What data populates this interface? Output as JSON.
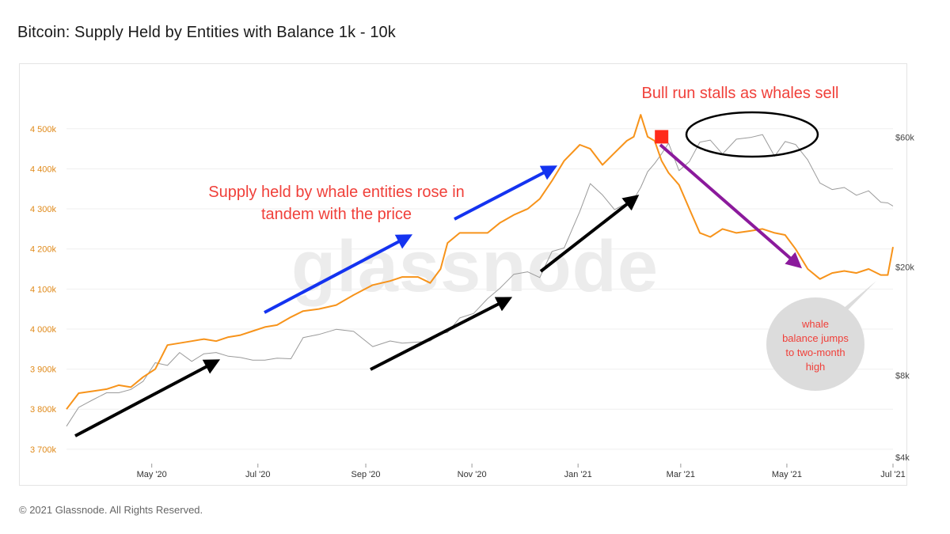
{
  "title": "Bitcoin: Supply Held by Entities with Balance 1k - 10k",
  "footer": "© 2021 Glassnode. All Rights Reserved.",
  "watermark": "glassnode",
  "colors": {
    "supply_series": "#f7931a",
    "price_series": "#9a9a9a",
    "blue_arrow": "#1433f0",
    "black_arrow": "#000000",
    "purple_arrow": "#8b1a9c",
    "annotation_red": "#f0403a",
    "marker_red": "#ff2a1a"
  },
  "chart_data": {
    "type": "line",
    "x_range": [
      "2020-03-13",
      "2021-07-01"
    ],
    "x_tick_labels": [
      "May '20",
      "Jul '20",
      "Sep '20",
      "Nov '20",
      "Jan '21",
      "Mar '21",
      "May '21",
      "Jul '21"
    ],
    "x_tick_dates": [
      "2020-05-01",
      "2020-07-01",
      "2020-09-01",
      "2020-11-01",
      "2021-01-01",
      "2021-03-01",
      "2021-05-01",
      "2021-07-01"
    ],
    "y_left": {
      "tick_labels": [
        "3 700k",
        "3 800k",
        "3 900k",
        "4 000k",
        "4 100k",
        "4 200k",
        "4 300k",
        "4 400k",
        "4 500k"
      ],
      "tick_values": [
        3700000,
        3800000,
        3900000,
        4000000,
        4100000,
        4200000,
        4300000,
        4400000,
        4500000
      ],
      "range": [
        3680000,
        4545000
      ]
    },
    "y_right": {
      "scale": "log",
      "tick_labels": [
        "$4k",
        "$8k",
        "$20k",
        "$60k"
      ],
      "tick_values": [
        4000,
        8000,
        20000,
        60000
      ],
      "range": [
        4000,
        75000
      ]
    },
    "series": [
      {
        "axis": "left",
        "points": [
          [
            "2020-03-13",
            3800000
          ],
          [
            "2020-03-20",
            3840000
          ],
          [
            "2020-03-28",
            3845000
          ],
          [
            "2020-04-05",
            3850000
          ],
          [
            "2020-04-12",
            3860000
          ],
          [
            "2020-04-19",
            3855000
          ],
          [
            "2020-04-26",
            3880000
          ],
          [
            "2020-05-03",
            3900000
          ],
          [
            "2020-05-10",
            3960000
          ],
          [
            "2020-05-17",
            3965000
          ],
          [
            "2020-05-24",
            3970000
          ],
          [
            "2020-05-31",
            3975000
          ],
          [
            "2020-06-07",
            3970000
          ],
          [
            "2020-06-14",
            3980000
          ],
          [
            "2020-06-21",
            3985000
          ],
          [
            "2020-06-28",
            3995000
          ],
          [
            "2020-07-05",
            4005000
          ],
          [
            "2020-07-12",
            4010000
          ],
          [
            "2020-07-20",
            4030000
          ],
          [
            "2020-07-27",
            4045000
          ],
          [
            "2020-08-05",
            4050000
          ],
          [
            "2020-08-15",
            4060000
          ],
          [
            "2020-08-25",
            4085000
          ],
          [
            "2020-09-05",
            4110000
          ],
          [
            "2020-09-15",
            4120000
          ],
          [
            "2020-09-22",
            4130000
          ],
          [
            "2020-10-01",
            4130000
          ],
          [
            "2020-10-08",
            4115000
          ],
          [
            "2020-10-14",
            4150000
          ],
          [
            "2020-10-18",
            4215000
          ],
          [
            "2020-10-25",
            4240000
          ],
          [
            "2020-11-02",
            4240000
          ],
          [
            "2020-11-10",
            4240000
          ],
          [
            "2020-11-17",
            4265000
          ],
          [
            "2020-11-25",
            4285000
          ],
          [
            "2020-12-03",
            4300000
          ],
          [
            "2020-12-10",
            4325000
          ],
          [
            "2020-12-17",
            4370000
          ],
          [
            "2020-12-24",
            4420000
          ],
          [
            "2021-01-02",
            4460000
          ],
          [
            "2021-01-08",
            4450000
          ],
          [
            "2021-01-15",
            4410000
          ],
          [
            "2021-01-22",
            4440000
          ],
          [
            "2021-01-29",
            4470000
          ],
          [
            "2021-02-02",
            4480000
          ],
          [
            "2021-02-06",
            4535000
          ],
          [
            "2021-02-10",
            4480000
          ],
          [
            "2021-02-14",
            4470000
          ],
          [
            "2021-02-18",
            4420000
          ],
          [
            "2021-02-22",
            4390000
          ],
          [
            "2021-02-28",
            4360000
          ],
          [
            "2021-03-06",
            4300000
          ],
          [
            "2021-03-12",
            4240000
          ],
          [
            "2021-03-18",
            4230000
          ],
          [
            "2021-03-25",
            4250000
          ],
          [
            "2021-04-02",
            4240000
          ],
          [
            "2021-04-10",
            4245000
          ],
          [
            "2021-04-17",
            4250000
          ],
          [
            "2021-04-24",
            4240000
          ],
          [
            "2021-04-30",
            4235000
          ],
          [
            "2021-05-06",
            4200000
          ],
          [
            "2021-05-13",
            4150000
          ],
          [
            "2021-05-20",
            4125000
          ],
          [
            "2021-05-27",
            4140000
          ],
          [
            "2021-06-03",
            4145000
          ],
          [
            "2021-06-10",
            4140000
          ],
          [
            "2021-06-17",
            4150000
          ],
          [
            "2021-06-24",
            4135000
          ],
          [
            "2021-06-28",
            4135000
          ],
          [
            "2021-07-01",
            4205000
          ]
        ]
      },
      {
        "axis": "right",
        "points": [
          [
            "2020-03-13",
            5200
          ],
          [
            "2020-03-20",
            6100
          ],
          [
            "2020-03-28",
            6500
          ],
          [
            "2020-04-05",
            6900
          ],
          [
            "2020-04-12",
            6900
          ],
          [
            "2020-04-19",
            7100
          ],
          [
            "2020-04-26",
            7600
          ],
          [
            "2020-05-03",
            8900
          ],
          [
            "2020-05-10",
            8700
          ],
          [
            "2020-05-17",
            9700
          ],
          [
            "2020-05-24",
            9000
          ],
          [
            "2020-05-31",
            9600
          ],
          [
            "2020-06-07",
            9700
          ],
          [
            "2020-06-14",
            9400
          ],
          [
            "2020-06-21",
            9300
          ],
          [
            "2020-06-28",
            9100
          ],
          [
            "2020-07-05",
            9100
          ],
          [
            "2020-07-12",
            9250
          ],
          [
            "2020-07-20",
            9200
          ],
          [
            "2020-07-27",
            11000
          ],
          [
            "2020-08-05",
            11300
          ],
          [
            "2020-08-15",
            11800
          ],
          [
            "2020-08-25",
            11600
          ],
          [
            "2020-09-05",
            10200
          ],
          [
            "2020-09-15",
            10700
          ],
          [
            "2020-09-22",
            10500
          ],
          [
            "2020-10-01",
            10600
          ],
          [
            "2020-10-08",
            10700
          ],
          [
            "2020-10-14",
            11400
          ],
          [
            "2020-10-18",
            11500
          ],
          [
            "2020-10-25",
            13000
          ],
          [
            "2020-11-02",
            13500
          ],
          [
            "2020-11-10",
            15300
          ],
          [
            "2020-11-17",
            16700
          ],
          [
            "2020-11-25",
            18800
          ],
          [
            "2020-12-03",
            19200
          ],
          [
            "2020-12-10",
            18300
          ],
          [
            "2020-12-17",
            22800
          ],
          [
            "2020-12-24",
            23500
          ],
          [
            "2021-01-02",
            32000
          ],
          [
            "2021-01-08",
            40500
          ],
          [
            "2021-01-15",
            36800
          ],
          [
            "2021-01-22",
            32500
          ],
          [
            "2021-01-29",
            34300
          ],
          [
            "2021-02-02",
            35500
          ],
          [
            "2021-02-06",
            39200
          ],
          [
            "2021-02-10",
            44800
          ],
          [
            "2021-02-14",
            48000
          ],
          [
            "2021-02-18",
            52100
          ],
          [
            "2021-02-22",
            57000
          ],
          [
            "2021-02-28",
            45200
          ],
          [
            "2021-03-06",
            48800
          ],
          [
            "2021-03-12",
            57500
          ],
          [
            "2021-03-18",
            58500
          ],
          [
            "2021-03-25",
            52000
          ],
          [
            "2021-04-02",
            59000
          ],
          [
            "2021-04-10",
            59800
          ],
          [
            "2021-04-17",
            61300
          ],
          [
            "2021-04-24",
            51000
          ],
          [
            "2021-04-30",
            57800
          ],
          [
            "2021-05-06",
            56400
          ],
          [
            "2021-05-13",
            49500
          ],
          [
            "2021-05-20",
            40700
          ],
          [
            "2021-05-27",
            38500
          ],
          [
            "2021-06-03",
            39200
          ],
          [
            "2021-06-10",
            36700
          ],
          [
            "2021-06-17",
            38100
          ],
          [
            "2021-06-24",
            34600
          ],
          [
            "2021-06-28",
            34400
          ],
          [
            "2021-07-01",
            33500
          ]
        ]
      }
    ],
    "marker": {
      "date": "2021-02-18",
      "value": 4480000,
      "shape": "square"
    },
    "annotations": [
      {
        "text_lines": [
          "Bull run stalls as whales sell"
        ]
      },
      {
        "text_lines": [
          "Supply held by whale entities rose in",
          "tandem with the price"
        ]
      },
      {
        "text_lines": [
          "whale",
          "balance jumps",
          "to two-month",
          "high"
        ]
      }
    ],
    "grid": "horizontal",
    "legend": "none"
  }
}
